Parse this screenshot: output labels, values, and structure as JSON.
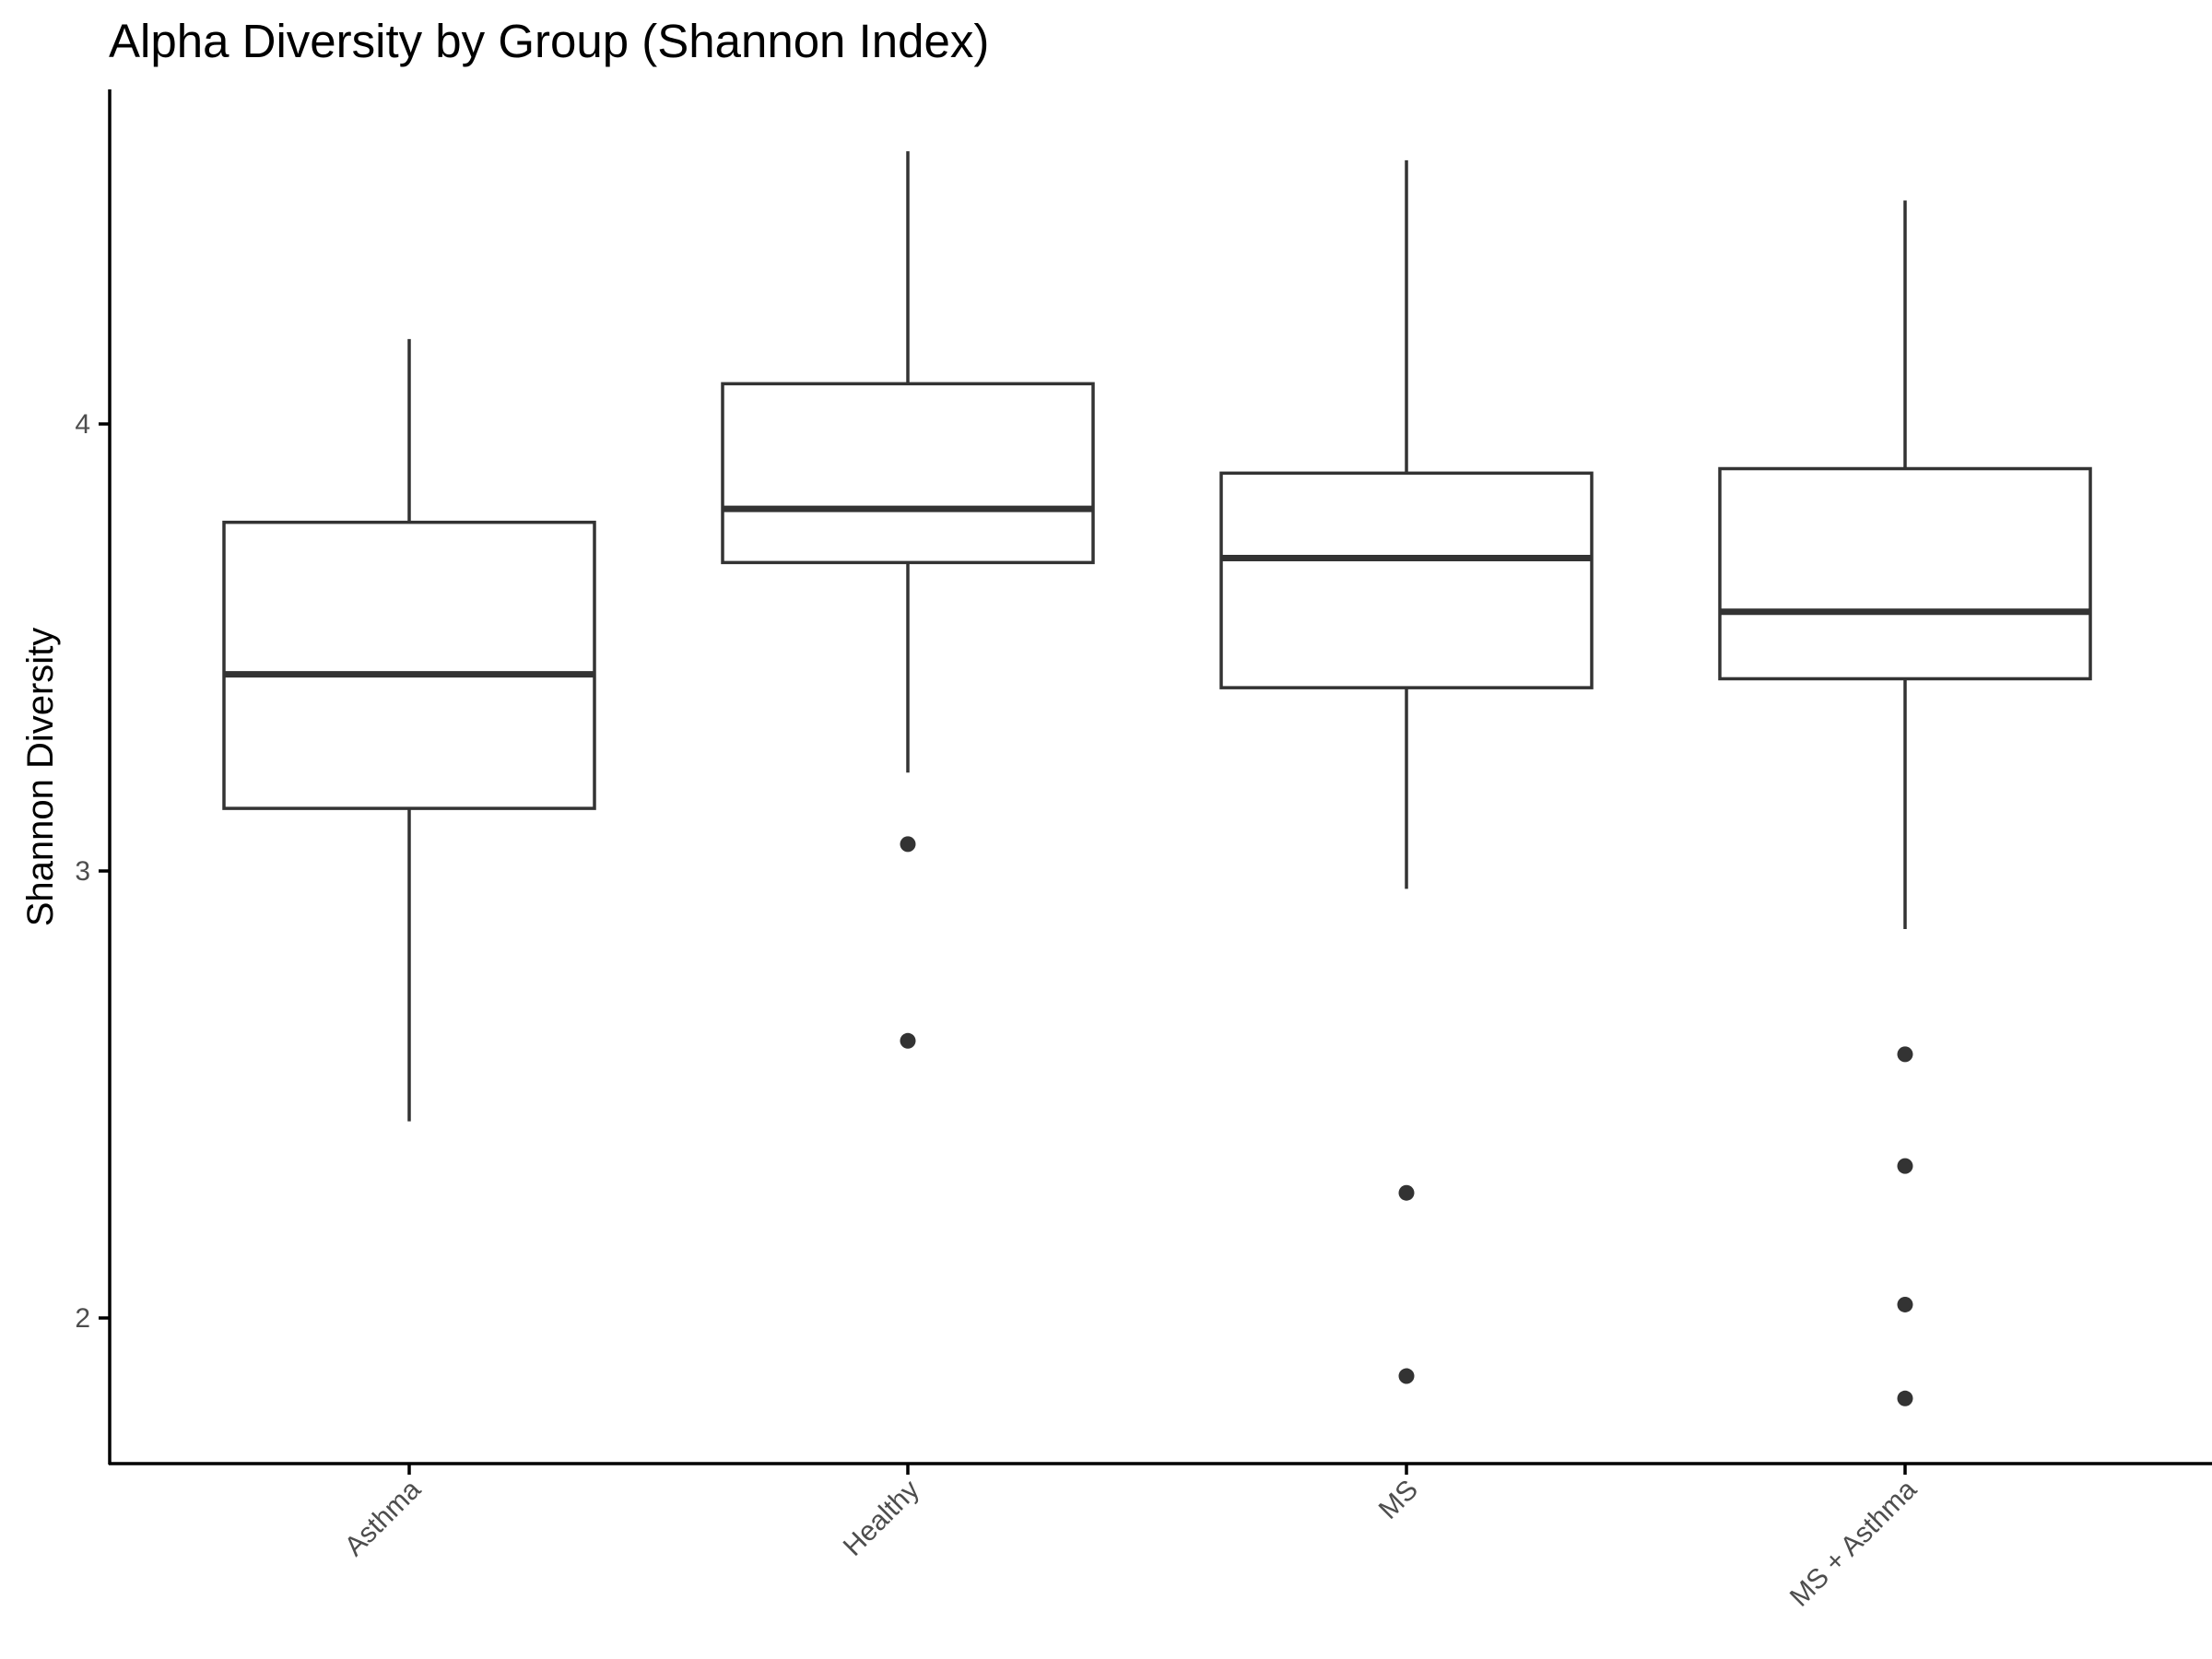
{
  "chart_data": {
    "type": "box",
    "title": "Alpha Diversity by Group (Shannon Index)",
    "xlabel": "",
    "ylabel": "Shannon Diversity",
    "ylim": [
      1.68,
      4.75
    ],
    "yticks": [
      2,
      3,
      4
    ],
    "grid": false,
    "categories": [
      "Asthma",
      "Healthy",
      "MS",
      "MS + Asthma"
    ],
    "boxes": [
      {
        "category": "Asthma",
        "whisker_low": 2.44,
        "q1": 3.14,
        "median": 3.44,
        "q3": 3.78,
        "whisker_high": 4.19,
        "outliers": []
      },
      {
        "category": "Healthy",
        "whisker_low": 3.22,
        "q1": 3.69,
        "median": 3.81,
        "q3": 4.09,
        "whisker_high": 4.61,
        "outliers": [
          3.06,
          2.62
        ]
      },
      {
        "category": "MS",
        "whisker_low": 2.96,
        "q1": 3.41,
        "median": 3.7,
        "q3": 3.89,
        "whisker_high": 4.59,
        "outliers": [
          2.28,
          1.87
        ]
      },
      {
        "category": "MS + Asthma",
        "whisker_low": 2.87,
        "q1": 3.43,
        "median": 3.58,
        "q3": 3.9,
        "whisker_high": 4.5,
        "outliers": [
          2.59,
          2.34,
          2.03,
          1.82
        ]
      }
    ],
    "colors": {
      "box_stroke": "#333333",
      "box_fill": "#ffffff",
      "axis": "#000000",
      "tick_label": "#4d4d4d"
    }
  }
}
